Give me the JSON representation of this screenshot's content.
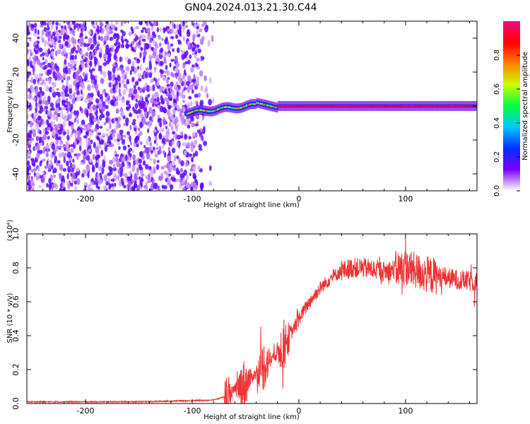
{
  "title": "GN04.2024.013.21.30.C44",
  "chart_data": [
    {
      "type": "heatmap",
      "xlabel": "Height of straight line (km)",
      "ylabel": "Frequency (Hz)",
      "xlim": [
        -255,
        167
      ],
      "ylim": [
        -50,
        50
      ],
      "xticks": [
        -200,
        -100,
        0,
        100
      ],
      "yticks": [
        -40,
        -20,
        0,
        20,
        40
      ],
      "colorbar": {
        "label": "Normalized spectral amplitude",
        "range": [
          0.0,
          1.0
        ],
        "ticks": [
          0.0,
          0.2,
          0.4,
          0.6,
          0.8
        ],
        "colors": [
          "#ffffff",
          "#7a00ff",
          "#0030ff",
          "#00c8ff",
          "#00ff40",
          "#c8ff00",
          "#ff8000",
          "#ff0000",
          "#ff0080"
        ]
      },
      "regions": [
        {
          "name": "noise",
          "x_range": [
            -255,
            -80
          ],
          "y_range": [
            -50,
            50
          ],
          "amplitude": 0.1
        },
        {
          "name": "signal",
          "x_range": [
            -105,
            167
          ],
          "center_frequency": 0,
          "amplitude": 0.9
        }
      ]
    },
    {
      "type": "line",
      "xlabel": "Height of straight line (km)",
      "ylabel": "SNR (10 * v/v)",
      "y_multiplier": "(x10⁴)",
      "xlim": [
        -255,
        167
      ],
      "ylim": [
        0.0,
        1.0
      ],
      "xticks": [
        -200,
        -100,
        0,
        100
      ],
      "yticks": [
        0.0,
        0.2,
        0.4,
        0.6,
        0.8,
        1.0
      ],
      "color": "#ee3333",
      "series": [
        {
          "x": [
            -255,
            -150,
            -80,
            -70,
            -60,
            -50,
            -40,
            -30,
            -20,
            -10,
            0,
            10,
            20,
            30,
            40,
            50,
            60,
            70,
            80,
            90,
            100,
            110,
            120,
            130,
            140,
            150,
            160,
            167
          ],
          "values": [
            0.01,
            0.01,
            0.02,
            0.04,
            0.08,
            0.12,
            0.18,
            0.24,
            0.3,
            0.38,
            0.5,
            0.6,
            0.68,
            0.74,
            0.78,
            0.8,
            0.8,
            0.79,
            0.78,
            0.79,
            0.8,
            0.78,
            0.76,
            0.75,
            0.74,
            0.73,
            0.72,
            0.72
          ]
        }
      ]
    }
  ]
}
